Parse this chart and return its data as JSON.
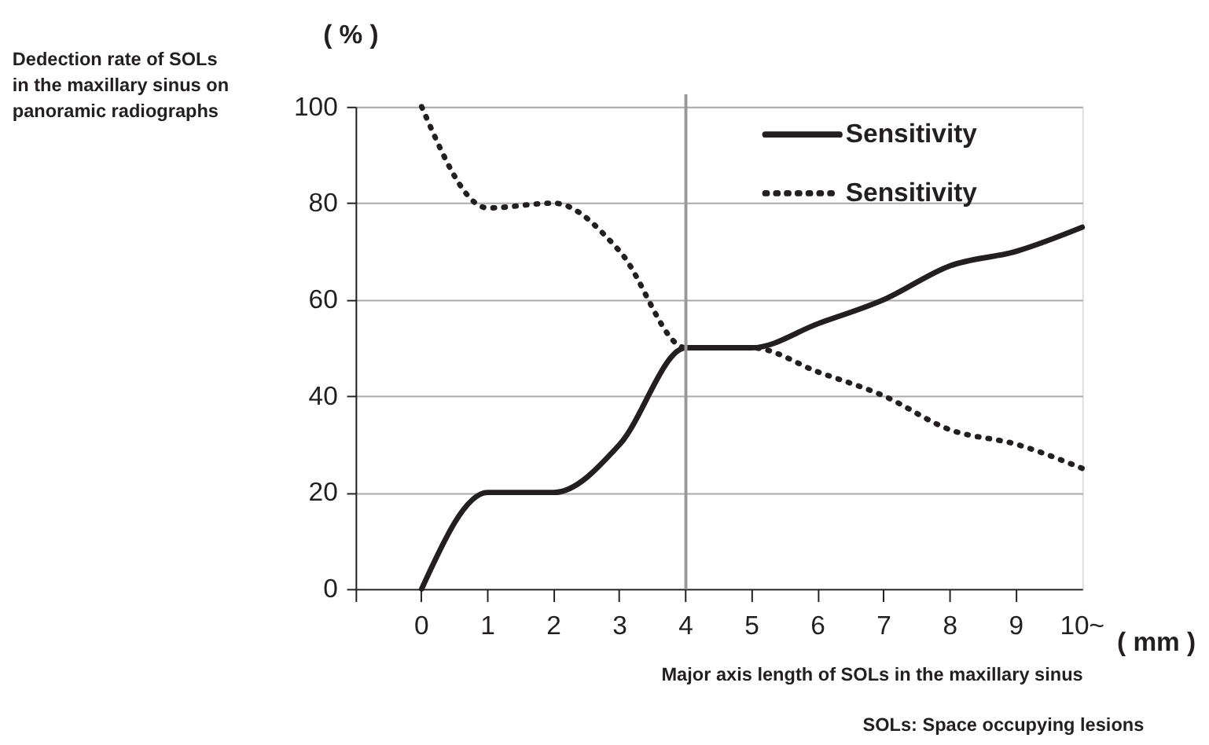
{
  "chart_data": {
    "type": "line",
    "ylabel": "Dedection rate of SOLs\nin the maxillary sinus on\npanoramic radiographs",
    "xlabel": "Major axis length of SOLs in the maxillary sinus",
    "annotations": [
      "( % )",
      "( mm )",
      "SOLs: Space occupying lesions"
    ],
    "categories": [
      "0",
      "1",
      "2",
      "3",
      "4",
      "5",
      "6",
      "7",
      "8",
      "9",
      "10~"
    ],
    "series": [
      {
        "name": "Sensitivity",
        "color": "#231f20",
        "line_style": "solid",
        "values": [
          0,
          20,
          20,
          30,
          50,
          50,
          55,
          60,
          67,
          70,
          75
        ]
      },
      {
        "name": "Sensitivity",
        "color": "#231f20",
        "line_style": "dotted",
        "values": [
          100,
          79,
          80,
          70,
          50,
          50,
          45,
          40,
          33,
          30,
          25
        ]
      }
    ],
    "ylim": [
      0,
      100
    ],
    "yticks": [
      0,
      20,
      40,
      60,
      80,
      100
    ],
    "ref_lines": [
      {
        "axis": "x",
        "value": "4",
        "color": "#999999"
      }
    ],
    "grid": "y",
    "legend": "top right"
  }
}
